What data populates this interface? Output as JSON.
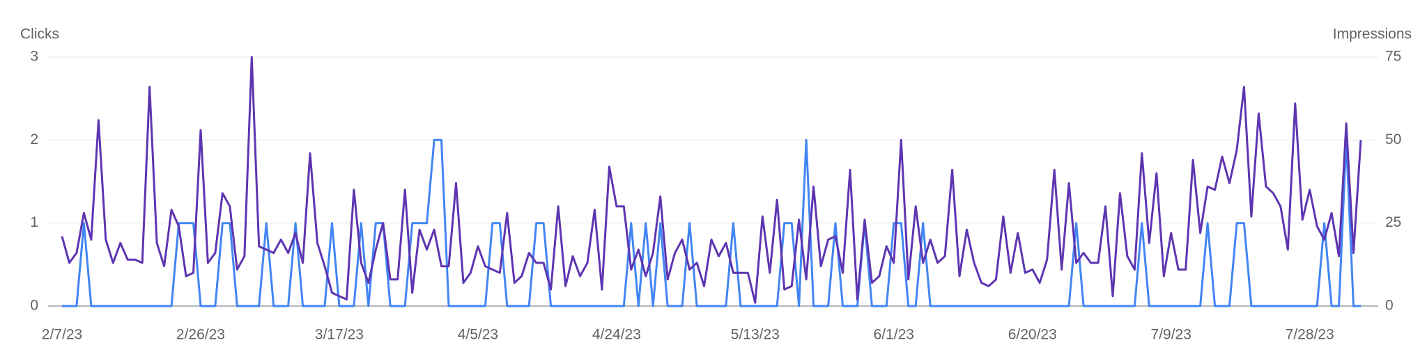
{
  "chart_data": {
    "type": "line",
    "y_label": "Clicks",
    "y2_label": "Impressions",
    "categories": [
      "2/7/23",
      null,
      null,
      null,
      null,
      null,
      null,
      null,
      null,
      null,
      null,
      null,
      null,
      null,
      null,
      null,
      null,
      null,
      null,
      "2/26/23",
      null,
      null,
      null,
      null,
      null,
      null,
      null,
      null,
      null,
      null,
      null,
      null,
      null,
      null,
      null,
      null,
      null,
      null,
      "3/17/23",
      null,
      null,
      null,
      null,
      null,
      null,
      null,
      null,
      null,
      null,
      null,
      null,
      null,
      null,
      null,
      null,
      null,
      null,
      "4/5/23",
      null,
      null,
      null,
      null,
      null,
      null,
      null,
      null,
      null,
      null,
      null,
      null,
      null,
      null,
      null,
      null,
      null,
      null,
      "4/24/23",
      null,
      null,
      null,
      null,
      null,
      null,
      null,
      null,
      null,
      null,
      null,
      null,
      null,
      null,
      null,
      null,
      null,
      null,
      "5/13/23",
      null,
      null,
      null,
      null,
      null,
      null,
      null,
      null,
      null,
      null,
      null,
      null,
      null,
      null,
      null,
      null,
      null,
      null,
      "6/1/23",
      null,
      null,
      null,
      null,
      null,
      null,
      null,
      null,
      null,
      null,
      null,
      null,
      null,
      null,
      null,
      null,
      null,
      null,
      "6/20/23",
      null,
      null,
      null,
      null,
      null,
      null,
      null,
      null,
      null,
      null,
      null,
      null,
      null,
      null,
      null,
      null,
      null,
      null,
      "7/9/23",
      null,
      null,
      null,
      null,
      null,
      null,
      null,
      null,
      null,
      null,
      null,
      null,
      null,
      null,
      null,
      null,
      null,
      null,
      "7/28/23",
      null,
      null,
      null,
      null,
      null,
      null,
      null
    ],
    "series": [
      {
        "name": "Clicks",
        "color": "#4285f4",
        "values": [
          0,
          0,
          0,
          1,
          0,
          0,
          0,
          0,
          0,
          0,
          0,
          0,
          0,
          0,
          0,
          0,
          1,
          1,
          1,
          0,
          0,
          0,
          1,
          1,
          0,
          0,
          0,
          0,
          1,
          0,
          0,
          0,
          1,
          0,
          0,
          0,
          0,
          1,
          0,
          0,
          0,
          1,
          0,
          1,
          1,
          0,
          0,
          0,
          1,
          1,
          1,
          2,
          2,
          0,
          0,
          0,
          0,
          0,
          0,
          1,
          1,
          0,
          0,
          0,
          0,
          1,
          1,
          0,
          0,
          0,
          0,
          0,
          0,
          0,
          0,
          0,
          0,
          0,
          1,
          0,
          1,
          0,
          1,
          0,
          0,
          0,
          1,
          0,
          0,
          0,
          0,
          0,
          1,
          0,
          0,
          0,
          0,
          0,
          0,
          1,
          1,
          0,
          2,
          0,
          0,
          0,
          1,
          0,
          0,
          0,
          1,
          0,
          0,
          0,
          1,
          1,
          0,
          0,
          1,
          0,
          0,
          0,
          0,
          0,
          0,
          0,
          0,
          0,
          0,
          0,
          0,
          0,
          0,
          0,
          0,
          0,
          0,
          0,
          0,
          1,
          0,
          0,
          0,
          0,
          0,
          0,
          0,
          0,
          1,
          0,
          0,
          0,
          0,
          0,
          0,
          0,
          0,
          1,
          0,
          0,
          0,
          1,
          1,
          0,
          0,
          0,
          0,
          0,
          0,
          0,
          0,
          0,
          0,
          1,
          0,
          0,
          2,
          0,
          0
        ]
      },
      {
        "name": "Impressions",
        "color": "#5e35b1",
        "axis": "y2",
        "values": [
          21,
          13,
          16,
          28,
          20,
          56,
          20,
          13,
          19,
          14,
          14,
          13,
          66,
          19,
          12,
          29,
          24,
          9,
          10,
          53,
          13,
          16,
          34,
          30,
          11,
          15,
          75,
          18,
          17,
          16,
          20,
          16,
          22,
          13,
          46,
          19,
          12,
          4,
          3,
          2,
          35,
          13,
          7,
          17,
          25,
          8,
          8,
          35,
          4,
          23,
          17,
          23,
          12,
          12,
          37,
          7,
          10,
          18,
          12,
          11,
          10,
          28,
          7,
          9,
          16,
          13,
          13,
          5,
          30,
          6,
          15,
          9,
          13,
          29,
          5,
          42,
          30,
          30,
          11,
          17,
          9,
          16,
          33,
          8,
          16,
          20,
          11,
          13,
          6,
          20,
          15,
          19,
          10,
          10,
          10,
          1,
          27,
          10,
          32,
          5,
          6,
          26,
          8,
          36,
          12,
          20,
          21,
          10,
          41,
          2,
          26,
          7,
          9,
          18,
          13,
          50,
          8,
          30,
          13,
          20,
          13,
          15,
          41,
          9,
          23,
          13,
          7,
          6,
          8,
          27,
          10,
          22,
          10,
          11,
          7,
          14,
          41,
          11,
          37,
          13,
          16,
          13,
          13,
          30,
          3,
          34,
          15,
          11,
          46,
          19,
          40,
          9,
          22,
          11,
          11,
          44,
          22,
          36,
          35,
          45,
          37,
          47,
          66,
          27,
          58,
          36,
          34,
          30,
          17,
          61,
          26,
          35,
          24,
          20,
          28,
          15,
          55,
          16,
          50
        ]
      }
    ],
    "ylim": [
      0,
      3
    ],
    "yticks": [
      0,
      1,
      2,
      3
    ],
    "y2lim": [
      0,
      75
    ],
    "y2ticks": [
      0,
      25,
      50,
      75
    ],
    "grid": true
  }
}
